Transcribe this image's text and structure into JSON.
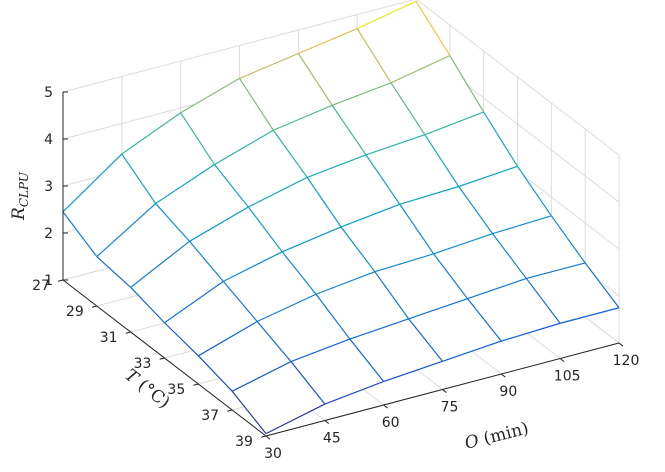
{
  "chart_data": {
    "type": "surface",
    "x": {
      "label_var": "O",
      "label_unit": "(min)",
      "ticks": [
        30,
        45,
        60,
        75,
        90,
        105,
        120
      ]
    },
    "y": {
      "label_var": "T",
      "label_unit": "(°C)",
      "ticks": [
        27,
        29,
        31,
        33,
        35,
        37,
        39
      ]
    },
    "z": {
      "label_var": "R",
      "label_sub": "CLPU",
      "ticks": [
        1,
        2,
        3,
        4,
        5
      ],
      "zlim": [
        1,
        5
      ]
    },
    "grid": true,
    "colormap": "parula",
    "values_by_T": [
      {
        "T": 27,
        "R": [
          2.45,
          3.35,
          3.9,
          4.3,
          4.5,
          4.7,
          4.95
        ]
      },
      {
        "T": 29,
        "R": [
          2.05,
          2.85,
          3.35,
          3.75,
          3.95,
          4.1,
          4.35
        ]
      },
      {
        "T": 31,
        "R": [
          1.95,
          2.6,
          3.0,
          3.3,
          3.45,
          3.55,
          3.7
        ]
      },
      {
        "T": 33,
        "R": [
          1.75,
          2.3,
          2.6,
          2.8,
          2.95,
          3.0,
          3.1
        ]
      },
      {
        "T": 35,
        "R": [
          1.6,
          2.0,
          2.25,
          2.4,
          2.45,
          2.55,
          2.6
        ]
      },
      {
        "T": 37,
        "R": [
          1.4,
          1.7,
          1.85,
          1.95,
          2.05,
          2.15,
          2.15
        ]
      },
      {
        "T": 39,
        "R": [
          1.05,
          1.35,
          1.5,
          1.6,
          1.7,
          1.75,
          1.75
        ]
      }
    ]
  }
}
